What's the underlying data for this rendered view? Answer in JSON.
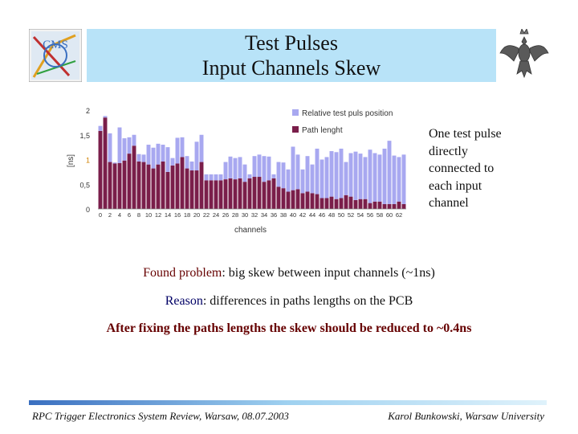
{
  "slide": {
    "title_line1": "Test Pulses",
    "title_line2": "Input Channels Skew",
    "side_note": [
      "One test pulse",
      "directly",
      "connected to",
      "each input",
      "channel"
    ],
    "found_label": "Found problem",
    "found_text": ": big skew between input channels (~1ns)",
    "reason_label": "Reason",
    "reason_text": ": differences in paths lengths on the PCB",
    "fix_text": "After fixing the paths lengths the skew should be reduced to ~0.4ns",
    "footer_left": "RPC Trigger Electronics System Review, Warsaw, 08.07.2003",
    "footer_right": "Karol Bunkowski, Warsaw University",
    "logo_left_text": "CMS"
  },
  "colors": {
    "title_bg": "#b8e3f8",
    "relative_series": "#a8a8f0",
    "path_series": "#7a1e4a",
    "accent_text": "#660000",
    "reason_text": "#000066"
  },
  "chart_data": {
    "type": "bar",
    "stacked": true,
    "ylabel": "[ns]",
    "xlabel": "channels",
    "ylim": [
      0,
      2
    ],
    "y_ticks": [
      "0",
      "0,5",
      "1",
      "1,5",
      "2"
    ],
    "x_ticks": [
      "0",
      "2",
      "4",
      "6",
      "8",
      "10",
      "12",
      "14",
      "16",
      "18",
      "20",
      "22",
      "24",
      "26",
      "28",
      "30",
      "32",
      "34",
      "36",
      "38",
      "40",
      "42",
      "44",
      "46",
      "48",
      "50",
      "52",
      "54",
      "56",
      "58",
      "60",
      "62"
    ],
    "legend_position": "top-right",
    "series": [
      {
        "name": "Path lenght",
        "values": [
          1.58,
          1.85,
          0.95,
          0.92,
          0.93,
          0.98,
          1.12,
          1.28,
          0.96,
          0.95,
          0.9,
          0.82,
          0.9,
          0.96,
          0.75,
          0.88,
          0.92,
          1.05,
          0.82,
          0.78,
          0.78,
          0.95,
          0.58,
          0.58,
          0.58,
          0.58,
          0.6,
          0.62,
          0.6,
          0.62,
          0.55,
          0.62,
          0.65,
          0.65,
          0.55,
          0.58,
          0.62,
          0.45,
          0.42,
          0.35,
          0.38,
          0.4,
          0.32,
          0.35,
          0.32,
          0.3,
          0.22,
          0.22,
          0.25,
          0.2,
          0.22,
          0.28,
          0.25,
          0.18,
          0.2,
          0.2,
          0.12,
          0.15,
          0.15,
          0.1,
          0.1,
          0.1,
          0.15,
          0.1
        ]
      },
      {
        "name": "Relative test puls position",
        "values": [
          0.1,
          0.03,
          0.58,
          0.02,
          0.72,
          0.45,
          0.33,
          0.22,
          0.15,
          0.15,
          0.4,
          0.42,
          0.42,
          0.34,
          0.5,
          0.15,
          0.52,
          0.4,
          0.25,
          0.18,
          0.58,
          0.55,
          0.12,
          0.12,
          0.12,
          0.12,
          0.35,
          0.44,
          0.43,
          0.43,
          0.35,
          0.08,
          0.42,
          0.45,
          0.52,
          0.48,
          0.08,
          0.5,
          0.52,
          0.45,
          0.88,
          0.7,
          0.48,
          0.72,
          0.58,
          0.92,
          0.78,
          0.83,
          0.92,
          0.95,
          1.0,
          0.67,
          0.88,
          0.98,
          0.92,
          0.85,
          1.08,
          0.98,
          0.95,
          1.12,
          1.28,
          0.98,
          0.9,
          1.0
        ]
      }
    ]
  }
}
